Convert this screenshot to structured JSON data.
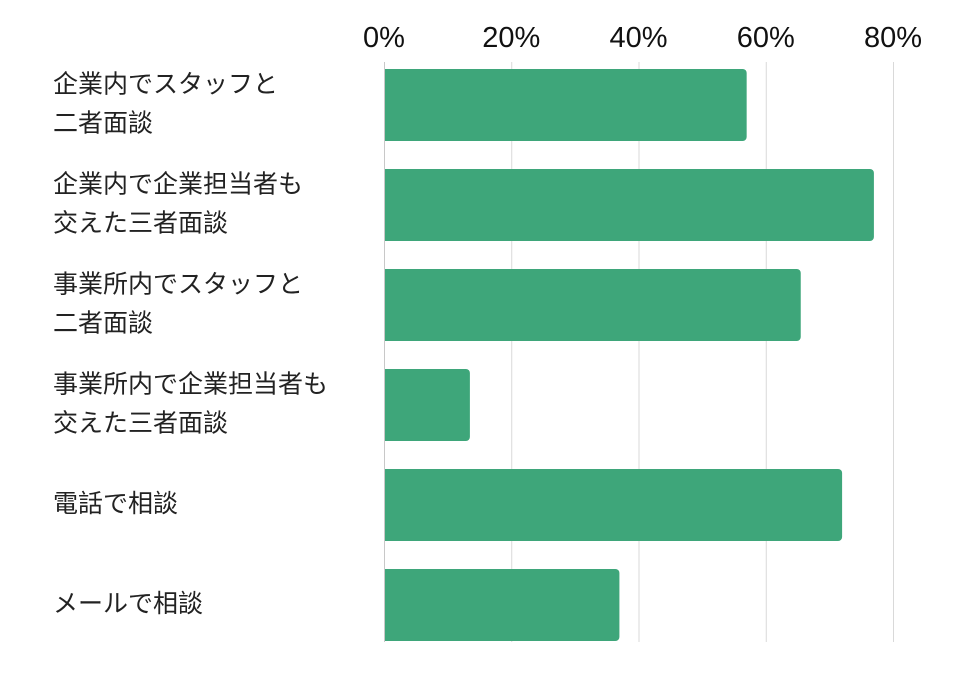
{
  "chart_data": {
    "type": "bar",
    "orientation": "horizontal",
    "categories": [
      [
        "企業内でスタッフと",
        "二者面談"
      ],
      [
        "企業内で企業担当者も",
        "交えた三者面談"
      ],
      [
        "事業所内でスタッフと",
        "二者面談"
      ],
      [
        "事業所内で企業担当者も",
        "交えた三者面談"
      ],
      [
        "電話で相談"
      ],
      [
        "メールで相談"
      ]
    ],
    "values": [
      57,
      77,
      65.5,
      13.5,
      72,
      37
    ],
    "unit": "%",
    "xlim": [
      0,
      80
    ],
    "xticks": [
      0,
      20,
      40,
      60,
      80
    ],
    "xtick_labels": [
      "0%",
      "20%",
      "40%",
      "60%",
      "80%"
    ],
    "x_axis_position": "top",
    "grid": true,
    "title": "",
    "xlabel": "",
    "ylabel": "",
    "bar_color": "#3ea67a",
    "grid_color": "#d9d9d9"
  }
}
